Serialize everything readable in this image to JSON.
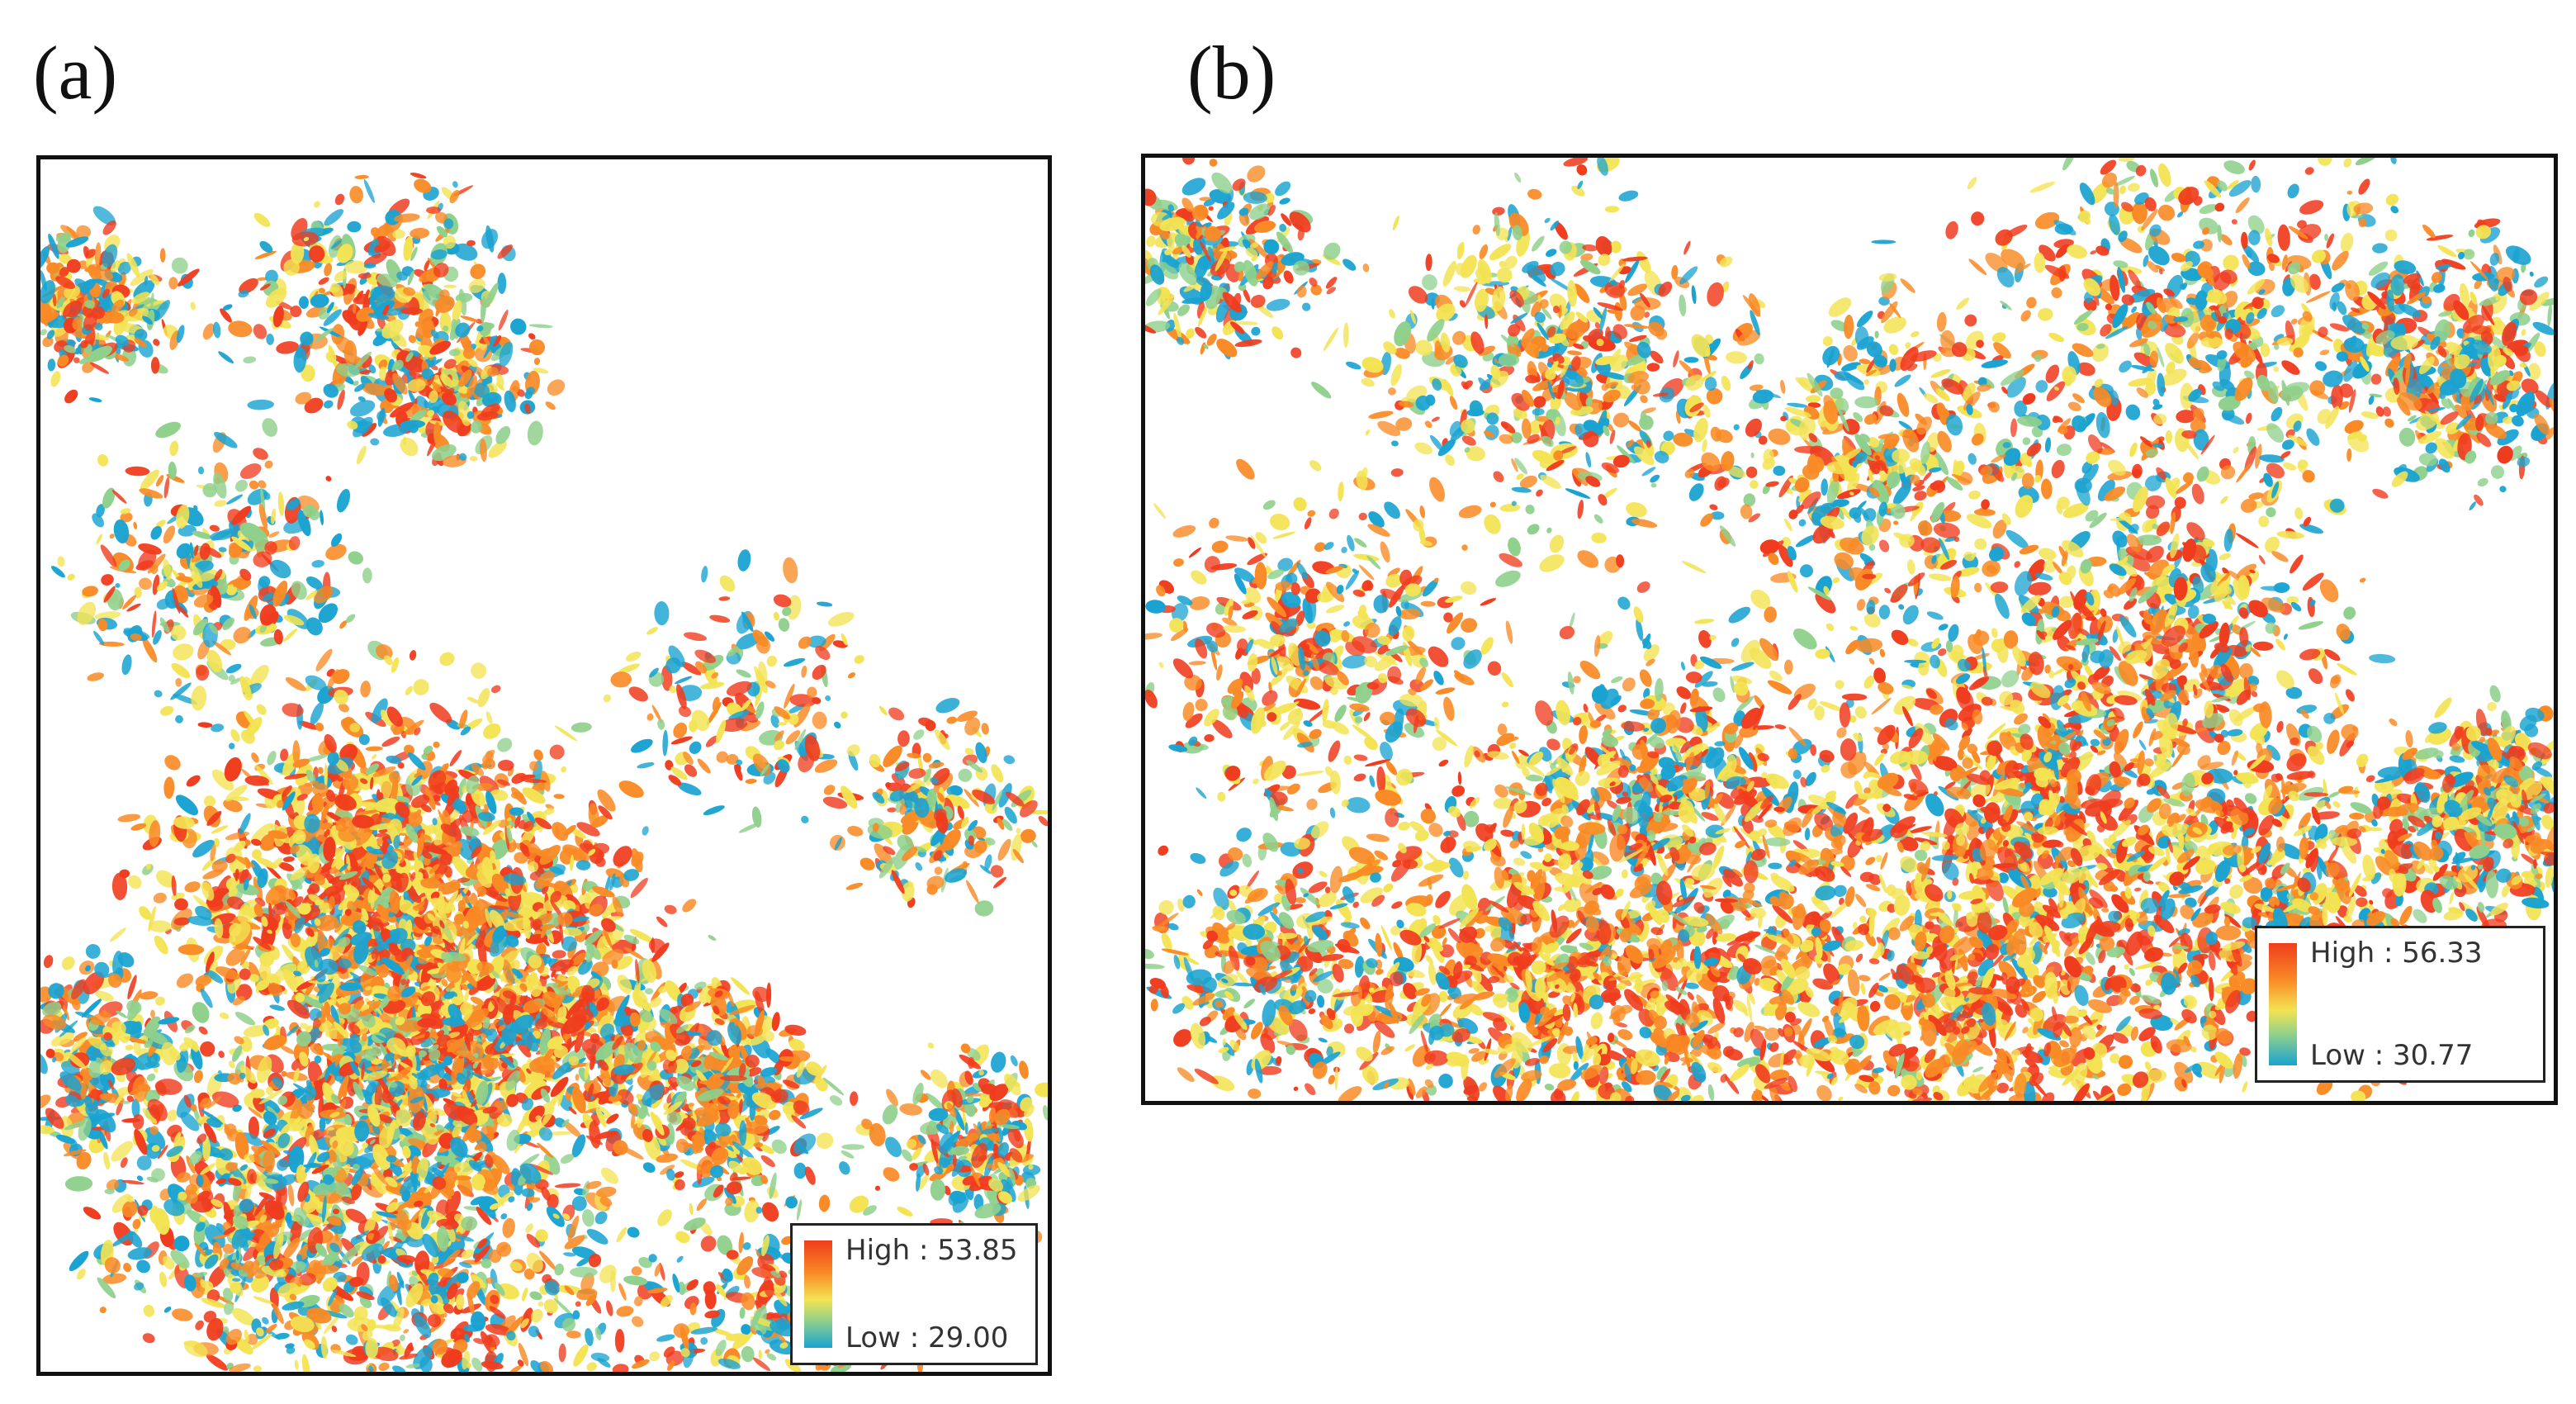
{
  "panels": [
    {
      "label": "(a)",
      "legend": {
        "high": "High : 53.85",
        "low": "Low : 29.00"
      }
    },
    {
      "label": "(b)",
      "legend": {
        "high": "High : 56.33",
        "low": "Low : 30.77"
      }
    }
  ],
  "colors": {
    "high": "#f03c1e",
    "mid_high": "#f98a25",
    "mid": "#f3e353",
    "mid_low": "#8fd08c",
    "low": "#1aa3d1",
    "background": "#ffffff",
    "frame": "#111111"
  }
}
